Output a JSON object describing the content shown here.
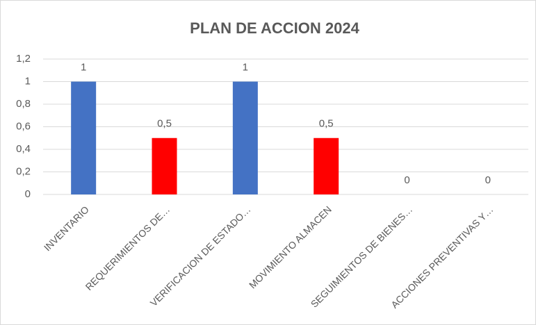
{
  "chart_data": {
    "type": "bar",
    "title": "PLAN DE ACCION 2024",
    "categories": [
      "INVENTARIO",
      "REQUERIMIENTOS DE…",
      "VERIFICACION DE ESTADO…",
      "MOVIMIENTO ALMACEN",
      "SEGUIMIENTOS DE BIENES…",
      "ACCIONES PREVENTIVAS Y…"
    ],
    "values": [
      1,
      0.5,
      1,
      0.5,
      0,
      0
    ],
    "value_labels": [
      "1",
      "0,5",
      "1",
      "0,5",
      "0",
      "0"
    ],
    "colors": [
      "#4472c4",
      "#ff0000",
      "#4472c4",
      "#ff0000",
      "#ff0000",
      "#ff0000"
    ],
    "ylim": [
      0,
      1.2
    ],
    "yticks": [
      0,
      {
        "value": 0.2,
        "label": "0,2"
      },
      {
        "value": 0.4,
        "label": "0,4"
      },
      {
        "value": 0.6,
        "label": "0,6"
      },
      {
        "value": 0.8,
        "label": "0,8"
      },
      1,
      {
        "value": 1.2,
        "label": "1,2"
      }
    ],
    "grid": true
  }
}
